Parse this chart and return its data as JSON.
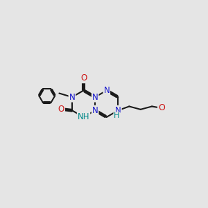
{
  "bg": "#e5e5e5",
  "bc": "#1a1a1a",
  "Nc": "#1414cc",
  "Oc": "#cc1414",
  "NHc": "#008888",
  "fs": 8.5,
  "xlim": [
    -2.8,
    3.5
  ],
  "ylim": [
    -1.6,
    1.6
  ],
  "a": 0.52
}
